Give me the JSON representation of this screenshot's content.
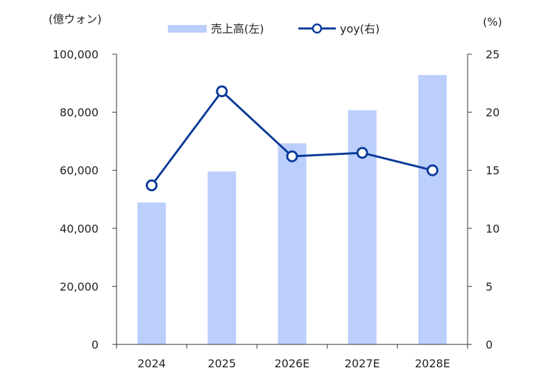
{
  "chart_data": {
    "type": "bar",
    "categories": [
      "2024",
      "2025",
      "2026E",
      "2027E",
      "2028E"
    ],
    "series": [
      {
        "name": "売上高(左)",
        "type": "bar",
        "axis": "left",
        "color": "#bccffc",
        "values": [
          48900,
          59600,
          69300,
          80700,
          92800
        ]
      },
      {
        "name": "yoy(右)",
        "type": "line",
        "axis": "right",
        "color": "#0a3a99",
        "values": [
          13.7,
          21.8,
          16.2,
          16.5,
          15.0
        ]
      }
    ],
    "y_left": {
      "unit_label": "(億ウォン)",
      "range": [
        0,
        100000
      ],
      "ticks": [
        0,
        20000,
        40000,
        60000,
        80000,
        100000
      ],
      "tick_labels": [
        "0",
        "20,000",
        "40,000",
        "60,000",
        "80,000",
        "100,000"
      ]
    },
    "y_right": {
      "unit_label": "(%)",
      "range": [
        0,
        25
      ],
      "ticks": [
        0,
        5,
        10,
        15,
        20,
        25
      ],
      "tick_labels": [
        "0",
        "5",
        "10",
        "15",
        "20",
        "25"
      ]
    },
    "legend_position": "top-center",
    "grid": false
  }
}
